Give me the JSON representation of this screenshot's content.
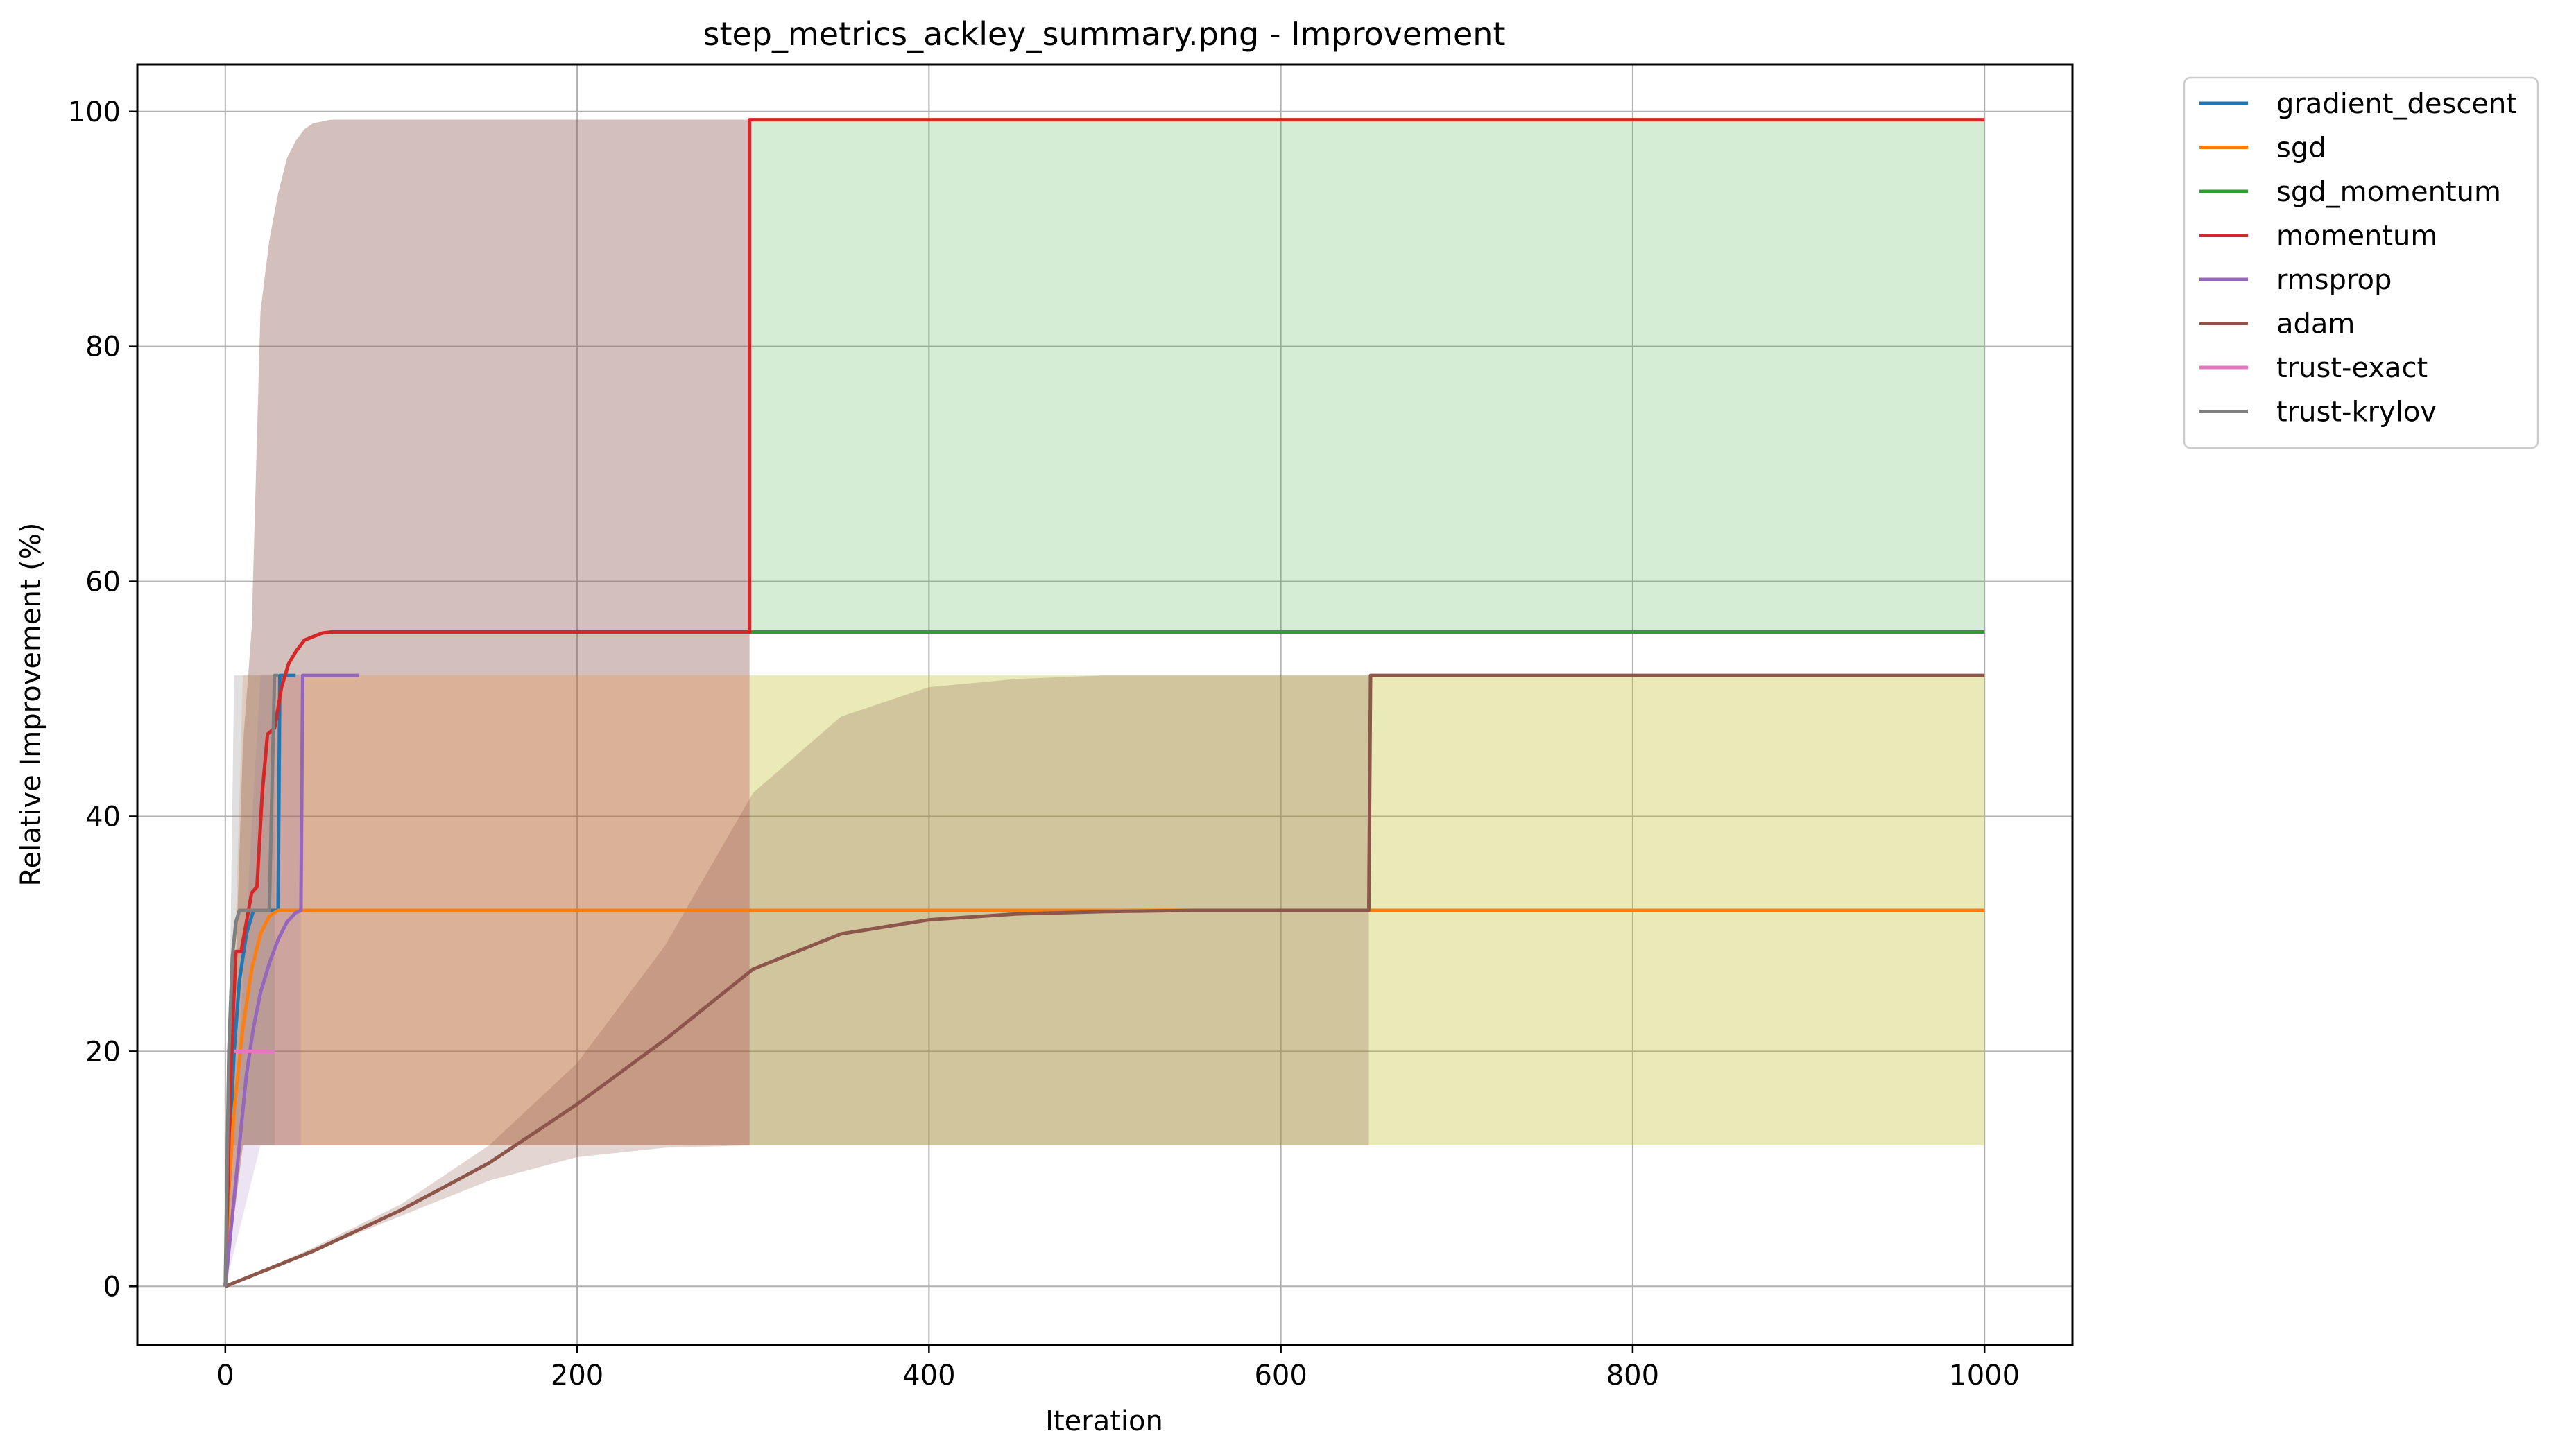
{
  "chart_data": {
    "type": "line",
    "title": "step_metrics_ackley_summary.png - Improvement",
    "xlabel": "Iteration",
    "ylabel": "Relative Improvement (%)",
    "xlim": [
      -50,
      1050
    ],
    "ylim": [
      -5,
      104
    ],
    "xticks": [
      0,
      200,
      400,
      600,
      800,
      1000
    ],
    "yticks": [
      0,
      20,
      40,
      60,
      80,
      100
    ],
    "grid": true,
    "legend_position": "outside right, top",
    "series": [
      {
        "name": "gradient_descent",
        "color": "#1f77b4",
        "x": [
          0,
          2,
          5,
          8,
          12,
          16,
          20,
          24,
          28,
          30,
          31,
          40
        ],
        "y": [
          0,
          10,
          20,
          26,
          30,
          32,
          32,
          32,
          32,
          32,
          52,
          52
        ]
      },
      {
        "name": "sgd",
        "color": "#ff7f0e",
        "x": [
          0,
          2,
          5,
          10,
          15,
          20,
          25,
          30,
          40,
          200,
          500,
          1000
        ],
        "y": [
          0,
          8,
          15,
          22,
          27,
          30,
          31.5,
          32,
          32,
          32,
          32,
          32
        ]
      },
      {
        "name": "sgd_momentum",
        "color": "#2ca02c",
        "x": [
          298,
          400,
          600,
          800,
          1000
        ],
        "y": [
          55.7,
          55.7,
          55.7,
          55.7,
          55.7
        ]
      },
      {
        "name": "momentum",
        "color": "#d62728",
        "x": [
          0,
          3,
          6,
          9,
          12,
          15,
          18,
          21,
          24,
          28,
          32,
          36,
          40,
          45,
          50,
          55,
          60,
          70,
          80,
          100,
          200,
          298,
          298,
          400,
          600,
          800,
          1000
        ],
        "y": [
          0,
          18,
          28.5,
          28.5,
          31,
          33.5,
          34,
          42,
          47,
          47.5,
          51,
          53,
          54,
          55,
          55.3,
          55.6,
          55.7,
          55.7,
          55.7,
          55.7,
          55.7,
          55.7,
          99.3,
          99.3,
          99.3,
          99.3,
          99.3
        ]
      },
      {
        "name": "rmsprop",
        "color": "#9467bd",
        "x": [
          0,
          4,
          8,
          12,
          16,
          20,
          25,
          30,
          35,
          40,
          43,
          44,
          50,
          60,
          70,
          76
        ],
        "y": [
          0,
          6,
          12,
          18,
          22,
          25,
          27.5,
          29.5,
          31,
          31.8,
          32,
          52,
          52,
          52,
          52,
          52
        ]
      },
      {
        "name": "adam",
        "color": "#8c564b",
        "x": [
          0,
          50,
          100,
          150,
          200,
          250,
          300,
          350,
          400,
          450,
          500,
          550,
          600,
          650,
          651,
          700,
          800,
          900,
          1000
        ],
        "y": [
          0,
          3,
          6.5,
          10.5,
          15.5,
          21,
          27,
          30,
          31.2,
          31.7,
          31.9,
          32,
          32,
          32,
          52,
          52,
          52,
          52,
          52
        ]
      },
      {
        "name": "trust-exact",
        "color": "#e377c2",
        "x": [
          5,
          10,
          15,
          20,
          25,
          28
        ],
        "y": [
          20,
          20,
          20,
          20,
          20,
          20
        ]
      },
      {
        "name": "trust-krylov",
        "color": "#7f7f7f",
        "x": [
          0,
          2,
          4,
          6,
          8,
          10,
          15,
          20,
          25,
          28,
          30
        ],
        "y": [
          0,
          20,
          28,
          31,
          32,
          32,
          32,
          32,
          32,
          52,
          52
        ]
      }
    ],
    "bands": [
      {
        "color": "#8c564b",
        "opacity": 0.38,
        "x": [
          0,
          10,
          15,
          20,
          25,
          30,
          35,
          40,
          45,
          50,
          60,
          80,
          150,
          298
        ],
        "lower": [
          0,
          12,
          12,
          12,
          12,
          12,
          12,
          12,
          12,
          12,
          12,
          12,
          12,
          12
        ],
        "upper": [
          0,
          46,
          56,
          83,
          89,
          93,
          96,
          97.5,
          98.5,
          99,
          99.3,
          99.3,
          99.3,
          99.3
        ]
      },
      {
        "color": "#ff7f0e",
        "opacity": 0.2,
        "x": [
          0,
          10,
          20,
          40,
          100,
          200,
          298
        ],
        "lower": [
          0,
          12,
          12,
          12,
          12,
          12,
          12
        ],
        "upper": [
          0,
          52,
          52,
          52,
          52,
          52,
          52
        ]
      },
      {
        "color": "#2ca02c",
        "opacity": 0.2,
        "x": [
          298,
          400,
          600,
          800,
          1000
        ],
        "lower": [
          55.7,
          55.7,
          55.7,
          55.7,
          55.7
        ],
        "upper": [
          99.3,
          99.3,
          99.3,
          99.3,
          99.3
        ]
      },
      {
        "color": "#bcbd22",
        "opacity": 0.32,
        "x": [
          298,
          400,
          600,
          650,
          700,
          800,
          1000
        ],
        "lower": [
          12,
          12,
          12,
          12,
          12,
          12,
          12
        ],
        "upper": [
          52,
          52,
          52,
          52,
          52,
          52,
          52
        ]
      },
      {
        "color": "#8c564b",
        "opacity": 0.25,
        "x": [
          0,
          50,
          100,
          150,
          200,
          250,
          300,
          350,
          400,
          450,
          500,
          550,
          600,
          650
        ],
        "lower": [
          0,
          3,
          6,
          9,
          11,
          11.8,
          12,
          12,
          12,
          12,
          12,
          12,
          12,
          12
        ],
        "upper": [
          0,
          3.3,
          7,
          12,
          19,
          29,
          42,
          48.5,
          51,
          51.7,
          52,
          52,
          52,
          52
        ]
      },
      {
        "color": "#9467bd",
        "opacity": 0.18,
        "x": [
          0,
          20,
          43
        ],
        "lower": [
          0,
          12,
          12
        ],
        "upper": [
          0,
          52,
          52
        ]
      },
      {
        "color": "#7f7f7f",
        "opacity": 0.25,
        "x": [
          0,
          3,
          5,
          10,
          15,
          20,
          28
        ],
        "lower": [
          0,
          12,
          12,
          12,
          12,
          12,
          12
        ],
        "upper": [
          0,
          30,
          52,
          52,
          52,
          52,
          52
        ]
      }
    ]
  }
}
